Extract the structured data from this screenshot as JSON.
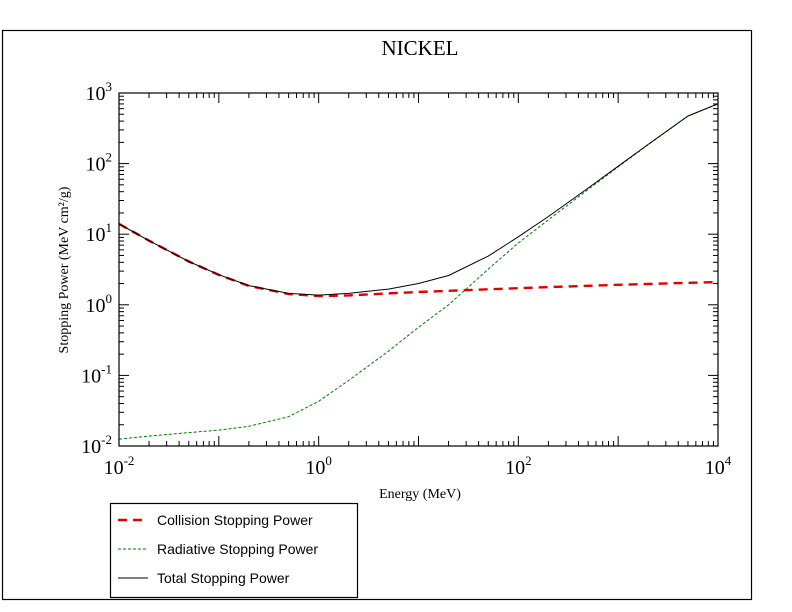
{
  "chart_data": {
    "type": "line",
    "title": "NICKEL",
    "xlabel": "Energy (MeV)",
    "ylabel": "Stopping Power (MeV cm²/g)",
    "xscale": "log",
    "yscale": "log",
    "xlim": [
      0.01,
      10000
    ],
    "ylim": [
      0.01,
      1000
    ],
    "x_ticks": [
      {
        "base": "10",
        "exp": "-2"
      },
      {
        "base": "10",
        "exp": "0"
      },
      {
        "base": "10",
        "exp": "2"
      },
      {
        "base": "10",
        "exp": "4"
      }
    ],
    "y_ticks": [
      {
        "base": "10",
        "exp": "-2"
      },
      {
        "base": "10",
        "exp": "-1"
      },
      {
        "base": "10",
        "exp": "0"
      },
      {
        "base": "10",
        "exp": "1"
      },
      {
        "base": "10",
        "exp": "2"
      },
      {
        "base": "10",
        "exp": "3"
      }
    ],
    "grid": false,
    "legend_position": "bottom-left",
    "series": [
      {
        "name": "Collision Stopping Power",
        "color": "#e00000",
        "style": "dashed-thick",
        "x": [
          0.01,
          0.02,
          0.05,
          0.1,
          0.2,
          0.5,
          1,
          2,
          5,
          10,
          20,
          50,
          100,
          200,
          500,
          1000,
          2000,
          5000,
          10000
        ],
        "y": [
          14.0,
          8.1,
          4.1,
          2.65,
          1.85,
          1.42,
          1.33,
          1.36,
          1.45,
          1.52,
          1.58,
          1.66,
          1.72,
          1.78,
          1.86,
          1.92,
          1.97,
          2.05,
          2.1
        ]
      },
      {
        "name": "Radiative Stopping Power",
        "color": "#007a00",
        "style": "dashed-thin",
        "x": [
          0.01,
          0.02,
          0.05,
          0.1,
          0.2,
          0.5,
          1,
          2,
          5,
          10,
          20,
          50,
          100,
          200,
          500,
          1000,
          2000,
          5000,
          10000
        ],
        "y": [
          0.0125,
          0.0138,
          0.0155,
          0.0168,
          0.019,
          0.026,
          0.043,
          0.085,
          0.22,
          0.48,
          1.0,
          3.2,
          7.5,
          16.0,
          43.0,
          90.0,
          185.0,
          470.0,
          700.0
        ]
      },
      {
        "name": "Total Stopping Power",
        "color": "#000000",
        "style": "solid",
        "x": [
          0.01,
          0.02,
          0.05,
          0.1,
          0.2,
          0.5,
          1,
          2,
          5,
          10,
          20,
          50,
          100,
          200,
          500,
          1000,
          2000,
          5000,
          10000
        ],
        "y": [
          14.0,
          8.1,
          4.1,
          2.67,
          1.87,
          1.45,
          1.37,
          1.45,
          1.67,
          2.0,
          2.6,
          4.9,
          9.2,
          17.8,
          45.0,
          92.0,
          187.0,
          472.0,
          702.0
        ]
      }
    ]
  }
}
